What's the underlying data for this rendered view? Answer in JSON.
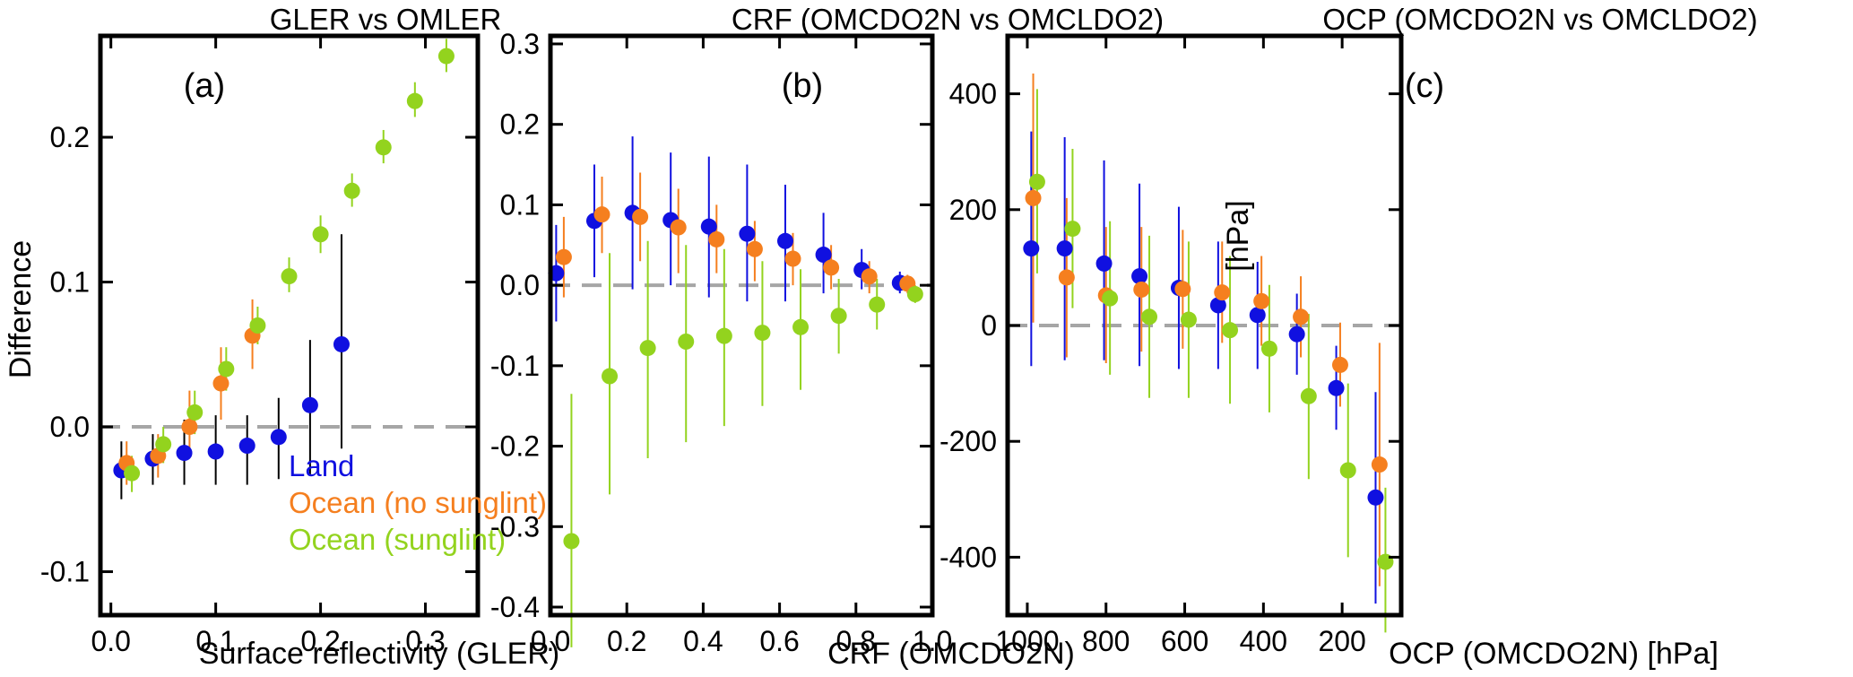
{
  "chart_data": [
    {
      "type": "scatter",
      "panel_label": "(a)",
      "title": "GLER vs OMLER",
      "xlabel": "Surface reflectivity (GLER)",
      "ylabel": "Difference",
      "xlim": [
        -0.01,
        0.35
      ],
      "ylim": [
        -0.13,
        0.27
      ],
      "xticks": [
        0.0,
        0.1,
        0.2,
        0.3
      ],
      "xtick_labels": [
        "0.0",
        "0.1",
        "0.2",
        "0.3"
      ],
      "yticks": [
        -0.1,
        0.0,
        0.1,
        0.2
      ],
      "ytick_labels": [
        "-0.1",
        "0.0",
        "0.1",
        "0.2"
      ],
      "reference_line": 0.0,
      "legend": {
        "position": "bottom-left",
        "entries": [
          {
            "label": "Land",
            "color": "#1010e0"
          },
          {
            "label": "Ocean (no sunglint)",
            "color": "#f57f1f"
          },
          {
            "label": "Ocean (sunglint)",
            "color": "#93d31e"
          }
        ]
      },
      "series": [
        {
          "name": "Land",
          "color": "#1010e0",
          "err_color": "#000000",
          "points": [
            {
              "x": 0.01,
              "y": -0.03,
              "lo": -0.05,
              "hi": -0.01
            },
            {
              "x": 0.04,
              "y": -0.022,
              "lo": -0.04,
              "hi": -0.005
            },
            {
              "x": 0.07,
              "y": -0.018,
              "lo": -0.04,
              "hi": 0.005
            },
            {
              "x": 0.1,
              "y": -0.017,
              "lo": -0.04,
              "hi": 0.008
            },
            {
              "x": 0.13,
              "y": -0.013,
              "lo": -0.04,
              "hi": 0.008
            },
            {
              "x": 0.16,
              "y": -0.007,
              "lo": -0.036,
              "hi": 0.02
            },
            {
              "x": 0.19,
              "y": 0.015,
              "lo": -0.033,
              "hi": 0.06
            },
            {
              "x": 0.22,
              "y": 0.057,
              "lo": -0.015,
              "hi": 0.133
            }
          ]
        },
        {
          "name": "Ocean (no sunglint)",
          "color": "#f57f1f",
          "err_color": "#f57f1f",
          "points": [
            {
              "x": 0.015,
              "y": -0.025,
              "lo": -0.04,
              "hi": -0.01
            },
            {
              "x": 0.045,
              "y": -0.02,
              "lo": -0.035,
              "hi": -0.005
            },
            {
              "x": 0.075,
              "y": 0.0,
              "lo": -0.02,
              "hi": 0.025
            },
            {
              "x": 0.105,
              "y": 0.03,
              "lo": 0.005,
              "hi": 0.055
            },
            {
              "x": 0.135,
              "y": 0.063,
              "lo": 0.04,
              "hi": 0.088
            }
          ]
        },
        {
          "name": "Ocean (sunglint)",
          "color": "#93d31e",
          "err_color": "#93d31e",
          "points": [
            {
              "x": 0.02,
              "y": -0.032,
              "lo": -0.045,
              "hi": -0.02
            },
            {
              "x": 0.05,
              "y": -0.012,
              "lo": -0.025,
              "hi": 0.0
            },
            {
              "x": 0.08,
              "y": 0.01,
              "lo": -0.005,
              "hi": 0.025
            },
            {
              "x": 0.11,
              "y": 0.04,
              "lo": 0.025,
              "hi": 0.055
            },
            {
              "x": 0.14,
              "y": 0.07,
              "lo": 0.057,
              "hi": 0.083
            },
            {
              "x": 0.17,
              "y": 0.104,
              "lo": 0.093,
              "hi": 0.117
            },
            {
              "x": 0.2,
              "y": 0.133,
              "lo": 0.12,
              "hi": 0.146
            },
            {
              "x": 0.23,
              "y": 0.163,
              "lo": 0.152,
              "hi": 0.175
            },
            {
              "x": 0.26,
              "y": 0.193,
              "lo": 0.182,
              "hi": 0.205
            },
            {
              "x": 0.29,
              "y": 0.225,
              "lo": 0.214,
              "hi": 0.238
            },
            {
              "x": 0.32,
              "y": 0.256,
              "lo": 0.245,
              "hi": 0.268
            }
          ]
        }
      ]
    },
    {
      "type": "scatter",
      "panel_label": "(b)",
      "title": "CRF (OMCDO2N vs OMCLDO2)",
      "xlabel": "CRF (OMCDO2N)",
      "ylabel": "",
      "xlim": [
        0.0,
        1.0
      ],
      "ylim": [
        -0.41,
        0.31
      ],
      "xticks": [
        0.0,
        0.2,
        0.4,
        0.6,
        0.8,
        1.0
      ],
      "xtick_labels": [
        "0.0",
        "0.2",
        "0.4",
        "0.6",
        "0.8",
        "1.0"
      ],
      "yticks": [
        -0.4,
        -0.3,
        -0.2,
        -0.1,
        0.0,
        0.1,
        0.2,
        0.3
      ],
      "ytick_labels": [
        "-0.4",
        "-0.3",
        "-0.2",
        "-0.1",
        "0.0",
        "0.1",
        "0.2",
        "0.3"
      ],
      "reference_line": 0.0,
      "series": [
        {
          "name": "Land",
          "color": "#1010e0",
          "err_color": "#1010e0",
          "points": [
            {
              "x": 0.015,
              "y": 0.015,
              "lo": -0.045,
              "hi": 0.075
            },
            {
              "x": 0.115,
              "y": 0.08,
              "lo": 0.01,
              "hi": 0.15
            },
            {
              "x": 0.215,
              "y": 0.09,
              "lo": -0.005,
              "hi": 0.185
            },
            {
              "x": 0.315,
              "y": 0.081,
              "lo": 0.0,
              "hi": 0.165
            },
            {
              "x": 0.415,
              "y": 0.073,
              "lo": -0.015,
              "hi": 0.16
            },
            {
              "x": 0.515,
              "y": 0.064,
              "lo": -0.02,
              "hi": 0.15
            },
            {
              "x": 0.615,
              "y": 0.055,
              "lo": -0.02,
              "hi": 0.125
            },
            {
              "x": 0.715,
              "y": 0.038,
              "lo": -0.01,
              "hi": 0.09
            },
            {
              "x": 0.815,
              "y": 0.019,
              "lo": -0.005,
              "hi": 0.045
            },
            {
              "x": 0.915,
              "y": 0.003,
              "lo": -0.01,
              "hi": 0.017
            }
          ]
        },
        {
          "name": "Ocean (no sunglint)",
          "color": "#f57f1f",
          "err_color": "#f57f1f",
          "points": [
            {
              "x": 0.035,
              "y": 0.035,
              "lo": -0.015,
              "hi": 0.085
            },
            {
              "x": 0.135,
              "y": 0.088,
              "lo": 0.04,
              "hi": 0.135
            },
            {
              "x": 0.235,
              "y": 0.085,
              "lo": 0.03,
              "hi": 0.14
            },
            {
              "x": 0.335,
              "y": 0.072,
              "lo": 0.015,
              "hi": 0.12
            },
            {
              "x": 0.435,
              "y": 0.057,
              "lo": 0.015,
              "hi": 0.1
            },
            {
              "x": 0.535,
              "y": 0.045,
              "lo": 0.005,
              "hi": 0.08
            },
            {
              "x": 0.635,
              "y": 0.033,
              "lo": 0.0,
              "hi": 0.065
            },
            {
              "x": 0.735,
              "y": 0.022,
              "lo": -0.005,
              "hi": 0.05
            },
            {
              "x": 0.835,
              "y": 0.011,
              "lo": -0.01,
              "hi": 0.03
            },
            {
              "x": 0.935,
              "y": 0.002,
              "lo": -0.01,
              "hi": 0.013
            }
          ]
        },
        {
          "name": "Ocean (sunglint)",
          "color": "#93d31e",
          "err_color": "#93d31e",
          "points": [
            {
              "x": 0.055,
              "y": -0.318,
              "lo": -0.45,
              "hi": -0.135
            },
            {
              "x": 0.155,
              "y": -0.113,
              "lo": -0.26,
              "hi": 0.04
            },
            {
              "x": 0.255,
              "y": -0.078,
              "lo": -0.215,
              "hi": 0.055
            },
            {
              "x": 0.355,
              "y": -0.07,
              "lo": -0.195,
              "hi": 0.05
            },
            {
              "x": 0.455,
              "y": -0.063,
              "lo": -0.175,
              "hi": 0.045
            },
            {
              "x": 0.555,
              "y": -0.059,
              "lo": -0.15,
              "hi": 0.03
            },
            {
              "x": 0.655,
              "y": -0.052,
              "lo": -0.13,
              "hi": 0.02
            },
            {
              "x": 0.755,
              "y": -0.038,
              "lo": -0.085,
              "hi": 0.008
            },
            {
              "x": 0.855,
              "y": -0.024,
              "lo": -0.055,
              "hi": 0.008
            },
            {
              "x": 0.955,
              "y": -0.011,
              "lo": -0.022,
              "hi": 0.0
            }
          ]
        }
      ]
    },
    {
      "type": "scatter",
      "panel_label": "(c)",
      "title": "OCP (OMCDO2N vs OMCLDO2)",
      "xlabel": "OCP (OMCDO2N) [hPa]",
      "ylabel": "[hPa]",
      "xlim": [
        1050,
        50
      ],
      "ylim": [
        -500,
        500
      ],
      "xticks": [
        1000,
        800,
        600,
        400,
        200
      ],
      "xtick_labels": [
        "1000",
        "800",
        "600",
        "400",
        "200"
      ],
      "yticks": [
        -400,
        -200,
        0,
        200,
        400
      ],
      "ytick_labels": [
        "-400",
        "-200",
        "0",
        "200",
        "400"
      ],
      "reference_line": 0,
      "series": [
        {
          "name": "Land",
          "color": "#1010e0",
          "err_color": "#1010e0",
          "points": [
            {
              "x": 990,
              "y": 133,
              "lo": -70,
              "hi": 335
            },
            {
              "x": 905,
              "y": 133,
              "lo": -60,
              "hi": 325
            },
            {
              "x": 805,
              "y": 107,
              "lo": -60,
              "hi": 285
            },
            {
              "x": 715,
              "y": 85,
              "lo": -70,
              "hi": 245
            },
            {
              "x": 615,
              "y": 65,
              "lo": -75,
              "hi": 205
            },
            {
              "x": 515,
              "y": 35,
              "lo": -75,
              "hi": 145
            },
            {
              "x": 415,
              "y": 18,
              "lo": -75,
              "hi": 110
            },
            {
              "x": 315,
              "y": -15,
              "lo": -85,
              "hi": 55
            },
            {
              "x": 215,
              "y": -108,
              "lo": -180,
              "hi": -35
            },
            {
              "x": 115,
              "y": -297,
              "lo": -480,
              "hi": -115
            }
          ]
        },
        {
          "name": "Ocean (no sunglint)",
          "color": "#f57f1f",
          "err_color": "#f57f1f",
          "points": [
            {
              "x": 985,
              "y": 220,
              "lo": 5,
              "hi": 435
            },
            {
              "x": 900,
              "y": 83,
              "lo": -55,
              "hi": 220
            },
            {
              "x": 800,
              "y": 52,
              "lo": -65,
              "hi": 170
            },
            {
              "x": 710,
              "y": 62,
              "lo": -45,
              "hi": 170
            },
            {
              "x": 605,
              "y": 63,
              "lo": -40,
              "hi": 165
            },
            {
              "x": 505,
              "y": 57,
              "lo": -30,
              "hi": 145
            },
            {
              "x": 405,
              "y": 42,
              "lo": -35,
              "hi": 120
            },
            {
              "x": 305,
              "y": 15,
              "lo": -55,
              "hi": 85
            },
            {
              "x": 205,
              "y": -68,
              "lo": -140,
              "hi": 5
            },
            {
              "x": 105,
              "y": -240,
              "lo": -450,
              "hi": -30
            }
          ]
        },
        {
          "name": "Ocean (sunglint)",
          "color": "#93d31e",
          "err_color": "#93d31e",
          "points": [
            {
              "x": 975,
              "y": 248,
              "lo": 90,
              "hi": 408
            },
            {
              "x": 885,
              "y": 167,
              "lo": 30,
              "hi": 305
            },
            {
              "x": 790,
              "y": 47,
              "lo": -85,
              "hi": 180
            },
            {
              "x": 690,
              "y": 15,
              "lo": -125,
              "hi": 155
            },
            {
              "x": 590,
              "y": 10,
              "lo": -125,
              "hi": 145
            },
            {
              "x": 485,
              "y": -8,
              "lo": -135,
              "hi": 120
            },
            {
              "x": 385,
              "y": -40,
              "lo": -150,
              "hi": 70
            },
            {
              "x": 285,
              "y": -122,
              "lo": -265,
              "hi": 20
            },
            {
              "x": 185,
              "y": -250,
              "lo": -400,
              "hi": -100
            },
            {
              "x": 90,
              "y": -408,
              "lo": -530,
              "hi": -280
            }
          ]
        }
      ]
    }
  ]
}
